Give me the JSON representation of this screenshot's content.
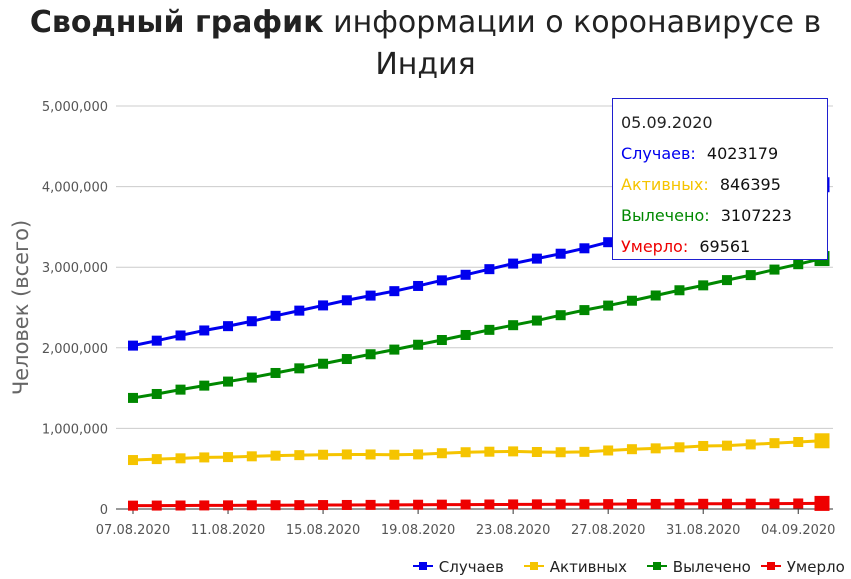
{
  "title": {
    "bold": "Сводный график",
    "rest": "информации о коронавирусе в Индия"
  },
  "chart_data": {
    "type": "line",
    "ylabel": "Человек (всего)",
    "ylim": [
      0,
      5000000
    ],
    "yticks": [
      "0",
      "1,000,000",
      "2,000,000",
      "3,000,000",
      "4,000,000",
      "5,000,000"
    ],
    "ytick_values": [
      0,
      1000000,
      2000000,
      3000000,
      4000000,
      5000000
    ],
    "xticks": [
      "07.08.2020",
      "11.08.2020",
      "15.08.2020",
      "19.08.2020",
      "23.08.2020",
      "27.08.2020",
      "31.08.2020",
      "04.09.2020"
    ],
    "x_last": "05.09.2020",
    "grid": true,
    "legend_position": "bottom-right",
    "series": [
      {
        "name": "Случаев",
        "color": "#0000ee",
        "values": [
          2027074,
          2088611,
          2153010,
          2215074,
          2268675,
          2329638,
          2396637,
          2461190,
          2525922,
          2589682,
          2647663,
          2702742,
          2767253,
          2836925,
          2905823,
          2975701,
          3044940,
          3106348,
          3167323,
          3234474,
          3310234,
          3387500,
          3463972,
          3542733,
          3621245,
          3691166,
          3769523,
          3853406,
          3936747,
          4023179
        ]
      },
      {
        "name": "Активных",
        "color": "#f5c400",
        "values": [
          607384,
          619088,
          628747,
          639929,
          643948,
          653622,
          661595,
          668220,
          673166,
          676900,
          676514,
          673166,
          677444,
          692028,
          704348,
          710771,
          714711,
          707267,
          704348,
          709142,
          725991,
          742023,
          752424,
          765302,
          781975,
          785996,
          801282,
          816920,
          831124,
          846395
        ]
      },
      {
        "name": "Вылечено",
        "color": "#008800",
        "values": [
          1378105,
          1427005,
          1480884,
          1530633,
          1580899,
          1630599,
          1687604,
          1745131,
          1802319,
          1860673,
          1919842,
          1977779,
          2037870,
          2096664,
          2158946,
          2222577,
          2280566,
          2338035,
          2404585,
          2467758,
          2523771,
          2583948,
          2648998,
          2713933,
          2774801,
          2839882,
          2901908,
          2970492,
          3037151,
          3107223
        ]
      },
      {
        "name": "Умерло",
        "color": "#ee0000",
        "values": [
          41585,
          42518,
          43379,
          44386,
          45257,
          46091,
          47033,
          48040,
          49036,
          49980,
          50921,
          51797,
          52889,
          53866,
          54849,
          55794,
          56706,
          57542,
          58390,
          59449,
          60472,
          61529,
          62550,
          63498,
          64469,
          65288,
          66333,
          67376,
          68472,
          69561
        ]
      }
    ]
  },
  "tooltip": {
    "date": "05.09.2020",
    "rows": [
      {
        "label": "Случаев:",
        "value": "4023179",
        "color": "#0000ee"
      },
      {
        "label": "Активных:",
        "value": "846395",
        "color": "#f5c400"
      },
      {
        "label": "Вылечено:",
        "value": "3107223",
        "color": "#008800"
      },
      {
        "label": "Умерло:",
        "value": "69561",
        "color": "#ee0000"
      }
    ]
  }
}
